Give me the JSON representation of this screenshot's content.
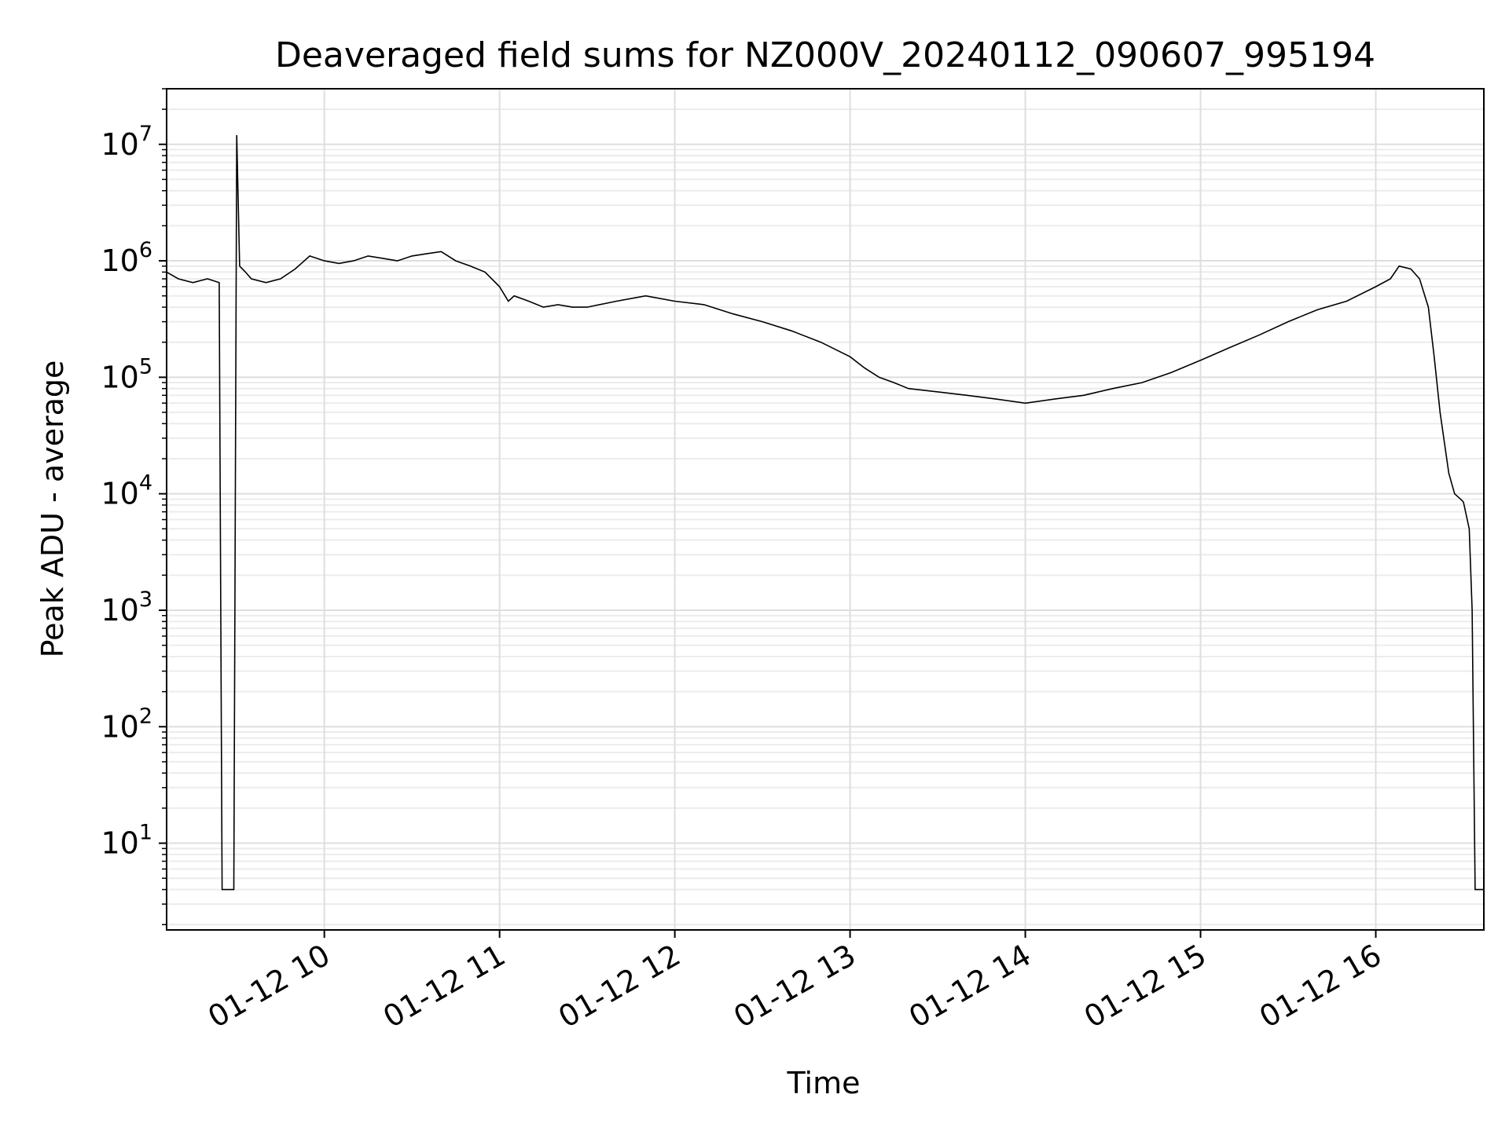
{
  "chart_data": {
    "type": "line",
    "title": "Deaveraged field sums for NZ000V_20240112_090607_995194",
    "xlabel": "Time",
    "ylabel": "Peak ADU - average",
    "yscale": "log",
    "ylim": [
      1.8,
      30000000
    ],
    "xlim": [
      "01-12 09:06",
      "01-12 16:37"
    ],
    "x_ticks": [
      "01-12 10",
      "01-12 11",
      "01-12 12",
      "01-12 13",
      "01-12 14",
      "01-12 15",
      "01-12 16"
    ],
    "y_ticks": [
      {
        "base": "10",
        "exp": "1",
        "value": 10
      },
      {
        "base": "10",
        "exp": "2",
        "value": 100
      },
      {
        "base": "10",
        "exp": "3",
        "value": 1000
      },
      {
        "base": "10",
        "exp": "4",
        "value": 10000
      },
      {
        "base": "10",
        "exp": "5",
        "value": 100000
      },
      {
        "base": "10",
        "exp": "6",
        "value": 1000000
      },
      {
        "base": "10",
        "exp": "7",
        "value": 10000000
      }
    ],
    "grid": true,
    "grid_minor": true,
    "line_color": "#000000",
    "series": [
      {
        "x": [
          "01-12 09:06",
          "01-12 09:10",
          "01-12 09:15",
          "01-12 09:20",
          "01-12 09:24",
          "01-12 09:25",
          "01-12 09:28",
          "01-12 09:29",
          "01-12 09:30",
          "01-12 09:31",
          "01-12 09:33",
          "01-12 09:35",
          "01-12 09:40",
          "01-12 09:45",
          "01-12 09:50",
          "01-12 09:55",
          "01-12 10:00",
          "01-12 10:05",
          "01-12 10:10",
          "01-12 10:15",
          "01-12 10:20",
          "01-12 10:25",
          "01-12 10:30",
          "01-12 10:35",
          "01-12 10:40",
          "01-12 10:45",
          "01-12 10:50",
          "01-12 10:55",
          "01-12 11:00",
          "01-12 11:03",
          "01-12 11:05",
          "01-12 11:10",
          "01-12 11:15",
          "01-12 11:20",
          "01-12 11:25",
          "01-12 11:30",
          "01-12 11:40",
          "01-12 11:50",
          "01-12 12:00",
          "01-12 12:10",
          "01-12 12:20",
          "01-12 12:30",
          "01-12 12:40",
          "01-12 12:50",
          "01-12 13:00",
          "01-12 13:05",
          "01-12 13:10",
          "01-12 13:15",
          "01-12 13:20",
          "01-12 13:30",
          "01-12 13:40",
          "01-12 13:50",
          "01-12 14:00",
          "01-12 14:10",
          "01-12 14:20",
          "01-12 14:30",
          "01-12 14:40",
          "01-12 14:50",
          "01-12 15:00",
          "01-12 15:10",
          "01-12 15:20",
          "01-12 15:30",
          "01-12 15:40",
          "01-12 15:50",
          "01-12 16:00",
          "01-12 16:05",
          "01-12 16:08",
          "01-12 16:12",
          "01-12 16:15",
          "01-12 16:18",
          "01-12 16:20",
          "01-12 16:22",
          "01-12 16:25",
          "01-12 16:27",
          "01-12 16:29",
          "01-12 16:30",
          "01-12 16:32",
          "01-12 16:33",
          "01-12 16:34",
          "01-12 16:37"
        ],
        "y": [
          800000,
          700000,
          650000,
          700000,
          650000,
          4,
          4,
          4,
          12000000,
          900000,
          800000,
          700000,
          650000,
          700000,
          850000,
          1100000,
          1000000,
          950000,
          1000000,
          1100000,
          1050000,
          1000000,
          1100000,
          1150000,
          1200000,
          1000000,
          900000,
          800000,
          600000,
          450000,
          500000,
          450000,
          400000,
          420000,
          400000,
          400000,
          450000,
          500000,
          450000,
          420000,
          350000,
          300000,
          250000,
          200000,
          150000,
          120000,
          100000,
          90000,
          80000,
          75000,
          70000,
          65000,
          60000,
          65000,
          70000,
          80000,
          90000,
          110000,
          140000,
          180000,
          230000,
          300000,
          380000,
          450000,
          600000,
          700000,
          900000,
          850000,
          700000,
          400000,
          150000,
          50000,
          15000,
          10000,
          9000,
          8500,
          5000,
          1000,
          4,
          4
        ]
      }
    ]
  }
}
